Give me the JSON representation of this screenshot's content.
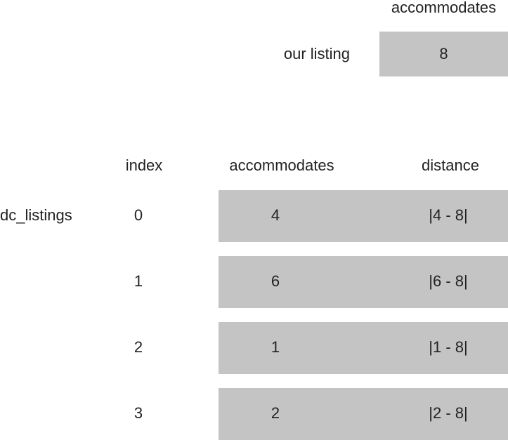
{
  "our_listing": {
    "column_header": "accommodates",
    "label": "our listing",
    "value": "8"
  },
  "table": {
    "name": "dc_listings",
    "headers": {
      "index": "index",
      "accommodates": "accommodates",
      "distance": "distance"
    },
    "rows": [
      {
        "index": "0",
        "accommodates": "4",
        "distance": "|4 - 8|"
      },
      {
        "index": "1",
        "accommodates": "6",
        "distance": "|6 - 8|"
      },
      {
        "index": "2",
        "accommodates": "1",
        "distance": "|1 - 8|"
      },
      {
        "index": "3",
        "accommodates": "2",
        "distance": "|2 - 8|"
      }
    ]
  },
  "colors": {
    "cell_fill": "#c4c4c4",
    "text": "#222222"
  }
}
